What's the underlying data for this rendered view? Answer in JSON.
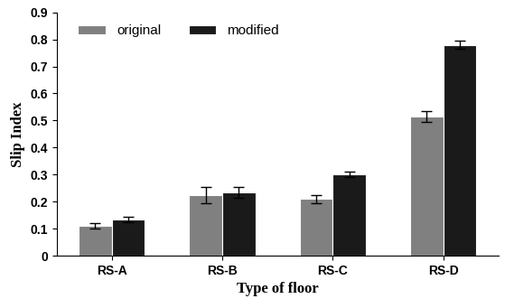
{
  "chart_data": {
    "type": "bar",
    "x_label": "Type of floor",
    "y_label": "Slip Index",
    "categories": [
      "RS-A",
      "RS-B",
      "RS-C",
      "RS-D"
    ],
    "series": [
      {
        "name": "original",
        "color": "#808080",
        "values": [
          0.11,
          0.225,
          0.21,
          0.515
        ],
        "errors": [
          0.01,
          0.03,
          0.015,
          0.02
        ]
      },
      {
        "name": "modified",
        "color": "#1a1a1a",
        "values": [
          0.135,
          0.235,
          0.3,
          0.78
        ],
        "errors": [
          0.01,
          0.02,
          0.01,
          0.015
        ]
      }
    ],
    "ylim": [
      0,
      0.9
    ],
    "yticks": [
      0,
      0.1,
      0.2,
      0.3,
      0.4,
      0.5,
      0.6,
      0.7,
      0.8,
      0.9
    ],
    "legend": "upper left",
    "grid": false
  }
}
